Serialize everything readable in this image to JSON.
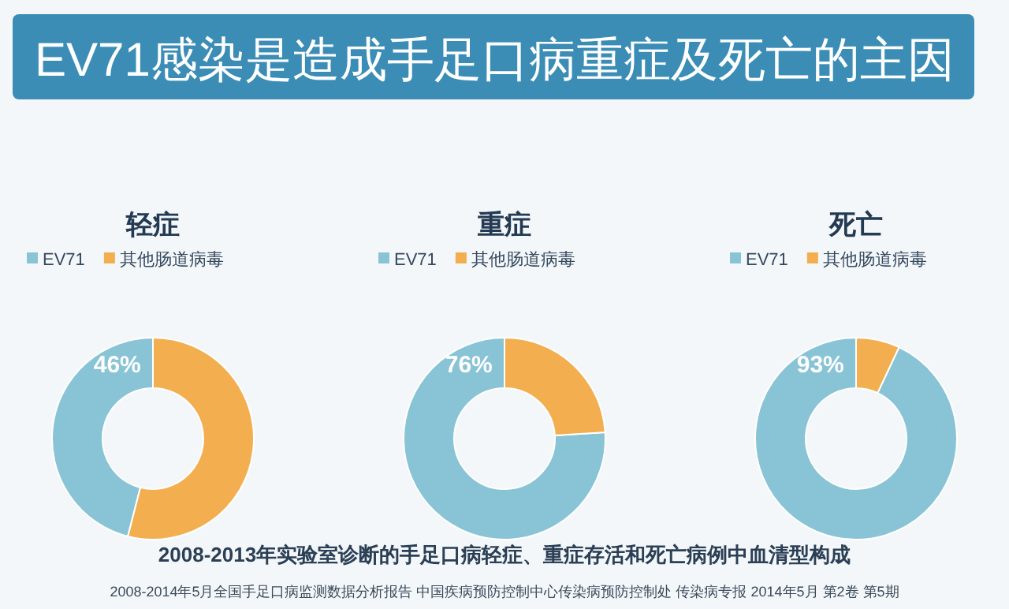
{
  "chart_data": [
    {
      "type": "other",
      "title": "EV71感染是造成手足口病重症及死亡的主因",
      "annotations": [
        "2008-2013年实验室诊断的手足口病轻症、重症存活和死亡病例中血清型构成",
        "2008-2014年5月全国手足口病监测数据分析报告 中国疾病预防控制中心传染病预防控制处 传染病专报 2014年5月 第2卷 第5期"
      ]
    },
    {
      "type": "donut",
      "title": "轻症",
      "categories": [
        "EV71",
        "其他肠道病毒"
      ],
      "values": [
        46,
        54
      ],
      "colors": [
        "#88c4d6",
        "#f2ae4f"
      ],
      "value_labels": [
        "46%",
        null
      ],
      "legend": "top"
    },
    {
      "type": "donut",
      "title": "重症",
      "categories": [
        "EV71",
        "其他肠道病毒"
      ],
      "values": [
        76,
        24
      ],
      "colors": [
        "#88c4d6",
        "#f2ae4f"
      ],
      "value_labels": [
        "76%",
        null
      ],
      "legend": "top"
    },
    {
      "type": "donut",
      "title": "死亡",
      "categories": [
        "EV71",
        "其他肠道病毒"
      ],
      "values": [
        93,
        7
      ],
      "colors": [
        "#88c4d6",
        "#f2ae4f"
      ],
      "value_labels": [
        "93%",
        null
      ],
      "legend": "top"
    }
  ]
}
